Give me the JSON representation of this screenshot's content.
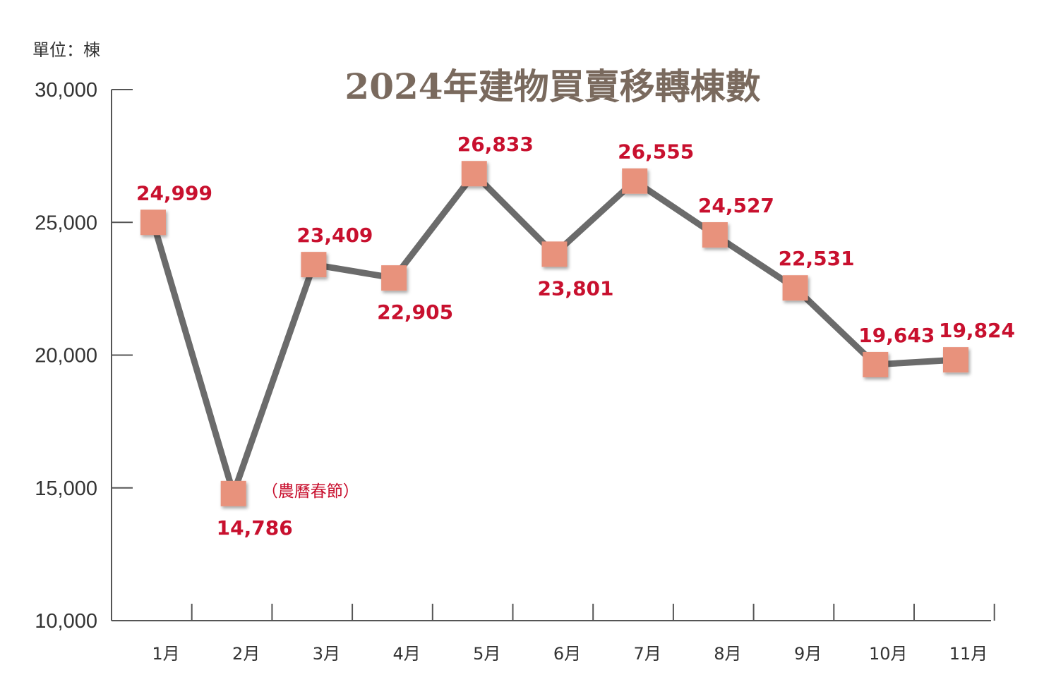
{
  "chart_data": {
    "type": "line",
    "title": "2024年建物買賣移轉棟數",
    "unit_label": "單位：棟",
    "categories": [
      "1月",
      "2月",
      "3月",
      "4月",
      "5月",
      "6月",
      "7月",
      "8月",
      "9月",
      "10月",
      "11月"
    ],
    "values": [
      24999,
      14786,
      23409,
      22905,
      26833,
      23801,
      26555,
      24527,
      22531,
      19643,
      19824
    ],
    "value_labels": [
      "24,999",
      "14,786",
      "23,409",
      "22,905",
      "26,833",
      "23,801",
      "26,555",
      "24,527",
      "22,531",
      "19,643",
      "19,824"
    ],
    "label_placement": [
      "above",
      "below",
      "above",
      "below",
      "above",
      "below",
      "above",
      "above",
      "above",
      "above",
      "above"
    ],
    "ylim": [
      10000,
      30000
    ],
    "yticks": [
      10000,
      15000,
      20000,
      25000,
      30000
    ],
    "ytick_labels": [
      "10,000",
      "15,000",
      "20,000",
      "25,000",
      "30,000"
    ],
    "annotation": {
      "text": "（農曆春節）",
      "point_index": 1
    },
    "grid": false,
    "legend": "none",
    "colors": {
      "line": "#6b6b6b",
      "marker": "#e8927c",
      "label": "#c8102e",
      "title": "#7a6a5e",
      "axis": "#555555"
    }
  }
}
